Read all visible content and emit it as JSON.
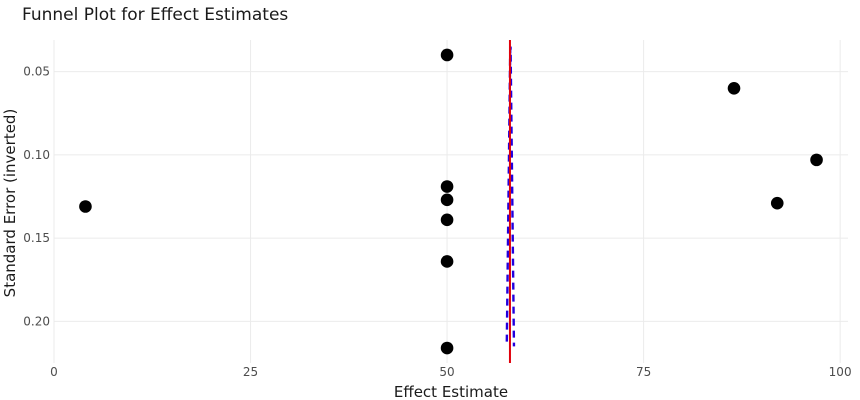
{
  "chart_data": {
    "type": "scatter",
    "title": "Funnel Plot for Effect Estimates",
    "xlabel": "Effect Estimate",
    "ylabel": "Standard Error (inverted)",
    "xlim": [
      0,
      101
    ],
    "ylim": [
      0.031,
      0.225
    ],
    "y_inverted": true,
    "grid": true,
    "legend": "none",
    "x_ticks": [
      0,
      25,
      50,
      75,
      100
    ],
    "x_tick_labels": [
      "0",
      "25",
      "50",
      "75",
      "100"
    ],
    "y_ticks": [
      0.05,
      0.1,
      0.15,
      0.2
    ],
    "y_tick_labels": [
      "0.05",
      "0.10",
      "0.15",
      "0.20"
    ],
    "points": [
      {
        "x": 4,
        "y": 0.131
      },
      {
        "x": 50,
        "y": 0.04
      },
      {
        "x": 50,
        "y": 0.119
      },
      {
        "x": 50,
        "y": 0.127
      },
      {
        "x": 50,
        "y": 0.139
      },
      {
        "x": 50,
        "y": 0.164
      },
      {
        "x": 50,
        "y": 0.216
      },
      {
        "x": 86.5,
        "y": 0.06
      },
      {
        "x": 92,
        "y": 0.129
      },
      {
        "x": 97,
        "y": 0.103
      }
    ],
    "reference_lines": {
      "solid_vertical_x": 58,
      "solid_color": "#e0000b",
      "funnel_color": "#2200dd",
      "funnel_center": 58,
      "funnel_ylim": [
        0.035,
        0.215
      ]
    },
    "point_color": "#000000"
  }
}
